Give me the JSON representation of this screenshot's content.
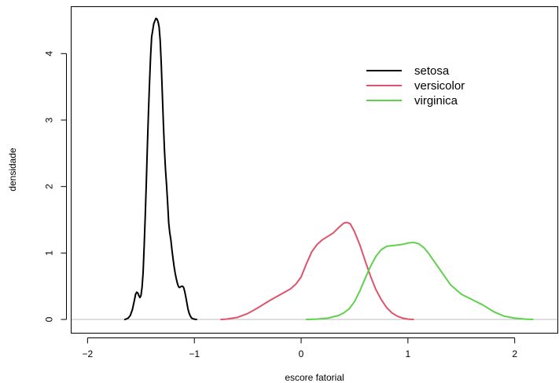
{
  "chart_data": {
    "type": "line",
    "title": "",
    "xlabel": "escore fatorial",
    "ylabel": "densidade",
    "xlim": [
      -2.15,
      2.4
    ],
    "ylim": [
      -0.2,
      4.7
    ],
    "x_ticks": [
      -2,
      -1,
      0,
      1,
      2
    ],
    "x_tick_labels": [
      "−2",
      "−1",
      "0",
      "1",
      "2"
    ],
    "y_ticks": [
      0,
      1,
      2,
      3,
      4
    ],
    "y_tick_labels": [
      "0",
      "1",
      "2",
      "3",
      "4"
    ],
    "baseline": 0,
    "grid": false,
    "legend_position": "top-right",
    "series": [
      {
        "name": "setosa",
        "color": "#000000",
        "x": [
          -1.65,
          -1.62,
          -1.6,
          -1.58,
          -1.56,
          -1.55,
          -1.54,
          -1.53,
          -1.52,
          -1.51,
          -1.5,
          -1.49,
          -1.48,
          -1.47,
          -1.46,
          -1.45,
          -1.44,
          -1.43,
          -1.42,
          -1.41,
          -1.4,
          -1.38,
          -1.36,
          -1.35,
          -1.34,
          -1.33,
          -1.32,
          -1.31,
          -1.3,
          -1.29,
          -1.28,
          -1.27,
          -1.26,
          -1.25,
          -1.24,
          -1.23,
          -1.22,
          -1.21,
          -1.2,
          -1.19,
          -1.18,
          -1.17,
          -1.16,
          -1.15,
          -1.14,
          -1.13,
          -1.12,
          -1.11,
          -1.1,
          -1.09,
          -1.08,
          -1.07,
          -1.06,
          -1.05,
          -1.04,
          -1.03,
          -1.02,
          -1.0,
          -0.98
        ],
        "y": [
          0.0,
          0.02,
          0.06,
          0.15,
          0.3,
          0.38,
          0.41,
          0.4,
          0.36,
          0.33,
          0.36,
          0.48,
          0.7,
          1.1,
          1.55,
          2.05,
          2.6,
          3.1,
          3.55,
          3.95,
          4.25,
          4.45,
          4.53,
          4.52,
          4.48,
          4.4,
          4.2,
          3.85,
          3.4,
          2.95,
          2.55,
          2.25,
          2.02,
          1.75,
          1.45,
          1.3,
          1.2,
          1.05,
          0.92,
          0.8,
          0.7,
          0.62,
          0.55,
          0.5,
          0.48,
          0.49,
          0.5,
          0.5,
          0.48,
          0.42,
          0.34,
          0.25,
          0.16,
          0.1,
          0.06,
          0.03,
          0.015,
          0.005,
          0.0
        ]
      },
      {
        "name": "versicolor",
        "color": "#DF536B",
        "x": [
          -0.75,
          -0.7,
          -0.6,
          -0.5,
          -0.4,
          -0.3,
          -0.2,
          -0.1,
          -0.05,
          0.0,
          0.05,
          0.1,
          0.15,
          0.2,
          0.25,
          0.3,
          0.35,
          0.4,
          0.43,
          0.46,
          0.5,
          0.55,
          0.6,
          0.65,
          0.7,
          0.75,
          0.8,
          0.85,
          0.9,
          0.95,
          1.0,
          1.05
        ],
        "y": [
          0.0,
          0.005,
          0.03,
          0.09,
          0.18,
          0.28,
          0.37,
          0.46,
          0.53,
          0.64,
          0.84,
          1.02,
          1.13,
          1.2,
          1.25,
          1.3,
          1.38,
          1.45,
          1.46,
          1.44,
          1.32,
          1.12,
          0.88,
          0.65,
          0.45,
          0.3,
          0.18,
          0.1,
          0.05,
          0.02,
          0.005,
          0.0
        ]
      },
      {
        "name": "virginica",
        "color": "#61D04F",
        "x": [
          0.05,
          0.15,
          0.25,
          0.35,
          0.4,
          0.45,
          0.5,
          0.55,
          0.6,
          0.65,
          0.7,
          0.75,
          0.8,
          0.85,
          0.9,
          0.95,
          1.0,
          1.05,
          1.1,
          1.15,
          1.2,
          1.3,
          1.4,
          1.5,
          1.6,
          1.7,
          1.8,
          1.9,
          2.0,
          2.1,
          2.17
        ],
        "y": [
          0.0,
          0.005,
          0.02,
          0.06,
          0.1,
          0.16,
          0.27,
          0.43,
          0.62,
          0.8,
          0.95,
          1.05,
          1.1,
          1.11,
          1.12,
          1.13,
          1.15,
          1.16,
          1.14,
          1.08,
          0.98,
          0.75,
          0.52,
          0.38,
          0.3,
          0.22,
          0.12,
          0.05,
          0.02,
          0.005,
          0.0
        ]
      }
    ]
  }
}
